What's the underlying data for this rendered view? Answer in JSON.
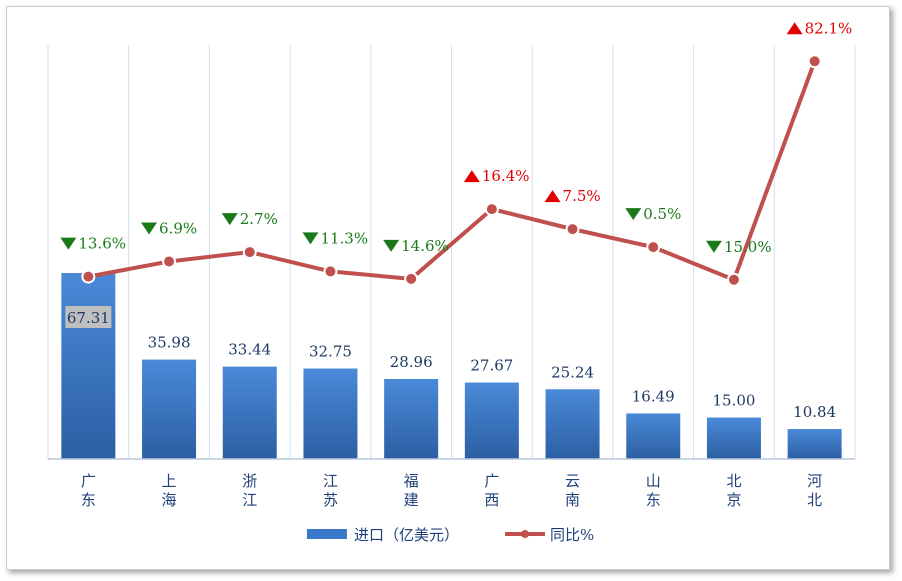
{
  "chart_data": {
    "type": "bar",
    "categories": [
      "广东",
      "上海",
      "浙江",
      "江苏",
      "福建",
      "广西",
      "云南",
      "山东",
      "北京",
      "河北"
    ],
    "series": [
      {
        "name": "进口（亿美元）",
        "type": "bar",
        "values": [
          67.31,
          35.98,
          33.44,
          32.75,
          28.96,
          27.67,
          25.24,
          16.49,
          15.0,
          10.84
        ],
        "labels": [
          "67.31",
          "35.98",
          "33.44",
          "32.75",
          "28.96",
          "27.67",
          "25.24",
          "16.49",
          "15.00",
          "10.84"
        ]
      },
      {
        "name": "同比%",
        "type": "line",
        "values": [
          -13.6,
          -6.9,
          -2.7,
          -11.3,
          -14.6,
          16.4,
          7.5,
          -0.5,
          -15.0,
          82.1
        ],
        "labels": [
          "13.6%",
          "6.9%",
          "2.7%",
          "11.3%",
          "14.6%",
          "16.4%",
          "7.5%",
          "0.5%",
          "15.0%",
          "82.1%"
        ]
      }
    ],
    "colors": {
      "bar": "#3a78c9",
      "line": "#c0504d",
      "up": "#e00000",
      "down": "#1a7a1a"
    },
    "grid": "vertical"
  }
}
